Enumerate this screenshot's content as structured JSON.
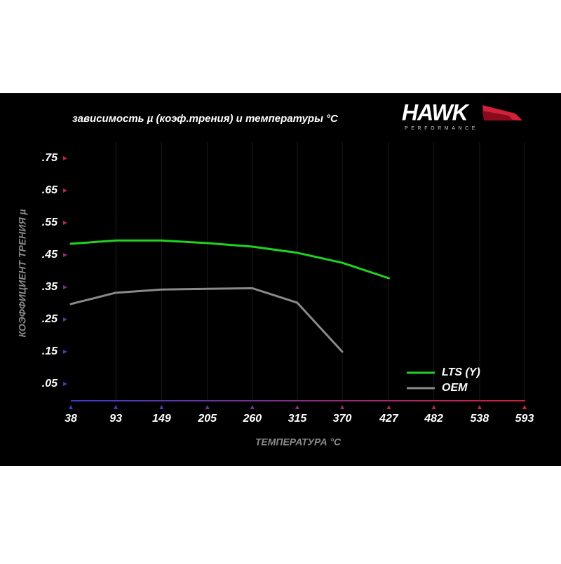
{
  "brand": {
    "name": "HAWK",
    "tagline": "PERFORMANCE"
  },
  "chart_data": {
    "type": "line",
    "title": "зависимость µ (коэф.трения) и температуры °C",
    "xlabel": "ТЕМПЕРАТУРА °C",
    "ylabel": "КОЭФФИЦИЕНТ ТРЕНИЯ µ",
    "x": [
      38,
      93,
      149,
      205,
      260,
      315,
      370,
      427
    ],
    "series": [
      {
        "name": "LTS (Y)",
        "color": "#1fd31f",
        "values": [
          0.485,
          0.495,
          0.495,
          0.487,
          0.476,
          0.457,
          0.426,
          0.378
        ]
      },
      {
        "name": "OEM",
        "color": "#8a8a8a",
        "values": [
          0.298,
          0.333,
          0.343,
          0.345,
          0.347,
          0.302,
          0.15,
          null
        ]
      }
    ],
    "xlim": [
      38,
      593
    ],
    "xticks": [
      38,
      93,
      149,
      205,
      260,
      315,
      370,
      427,
      482,
      538,
      593
    ],
    "ylim": [
      0,
      0.8
    ],
    "yticks": [
      {
        "value": 0.05,
        "label": ".05"
      },
      {
        "value": 0.15,
        "label": ".15"
      },
      {
        "value": 0.25,
        "label": ".25"
      },
      {
        "value": 0.35,
        "label": ".35"
      },
      {
        "value": 0.45,
        "label": ".45"
      },
      {
        "value": 0.55,
        "label": ".55"
      },
      {
        "value": 0.65,
        "label": ".65"
      },
      {
        "value": 0.75,
        "label": ".75"
      }
    ],
    "grid": true,
    "legend": "lower right"
  }
}
